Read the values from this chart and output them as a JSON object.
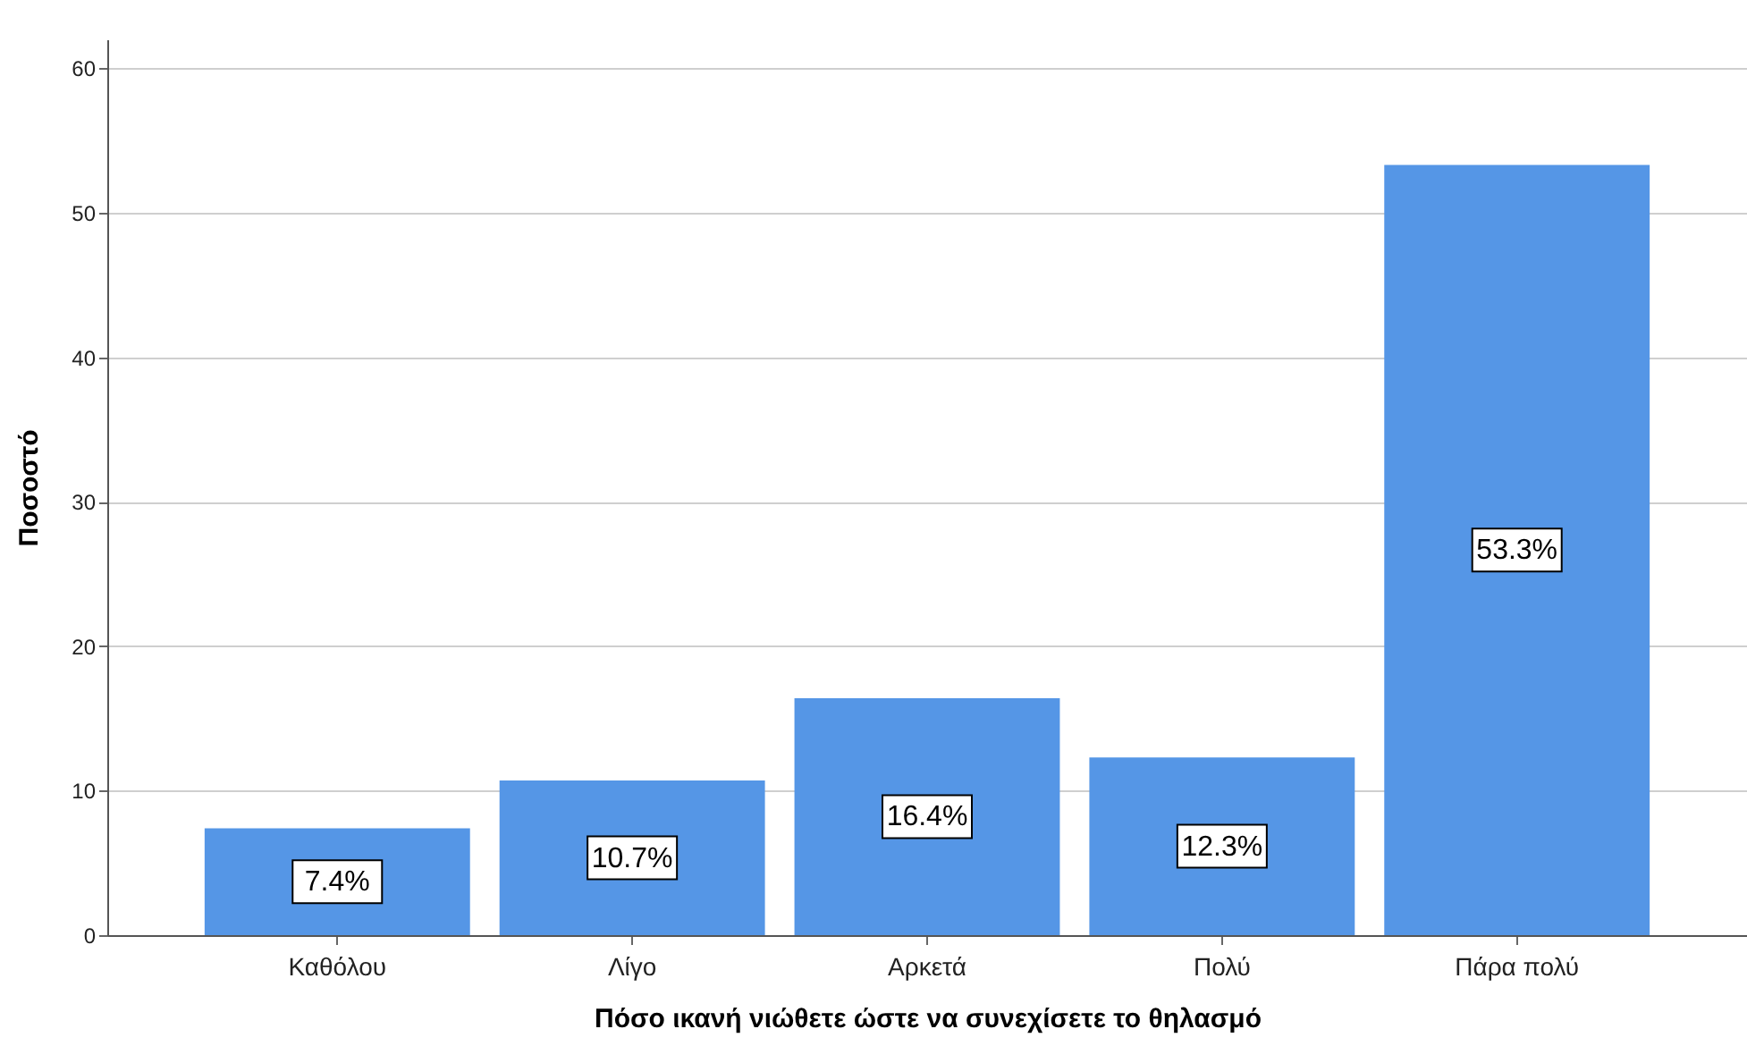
{
  "chart_data": {
    "type": "bar",
    "xlabel": "Πόσο ικανή νιώθετε ώστε να συνεχίσετε το θηλασμό",
    "ylabel": "Ποσοστό",
    "categories": [
      "Καθόλου",
      "Λίγο",
      "Αρκετά",
      "Πολύ",
      "Πάρα πολύ"
    ],
    "values": [
      7.4,
      10.7,
      16.4,
      12.3,
      53.3
    ],
    "value_labels": [
      "7.4%",
      "10.7%",
      "16.4%",
      "12.3%",
      "53.3%"
    ],
    "color": "#5596e6",
    "ylim": [
      0,
      62
    ],
    "yticks": [
      0,
      10,
      20,
      30,
      40,
      50,
      60
    ],
    "grid": "y"
  }
}
